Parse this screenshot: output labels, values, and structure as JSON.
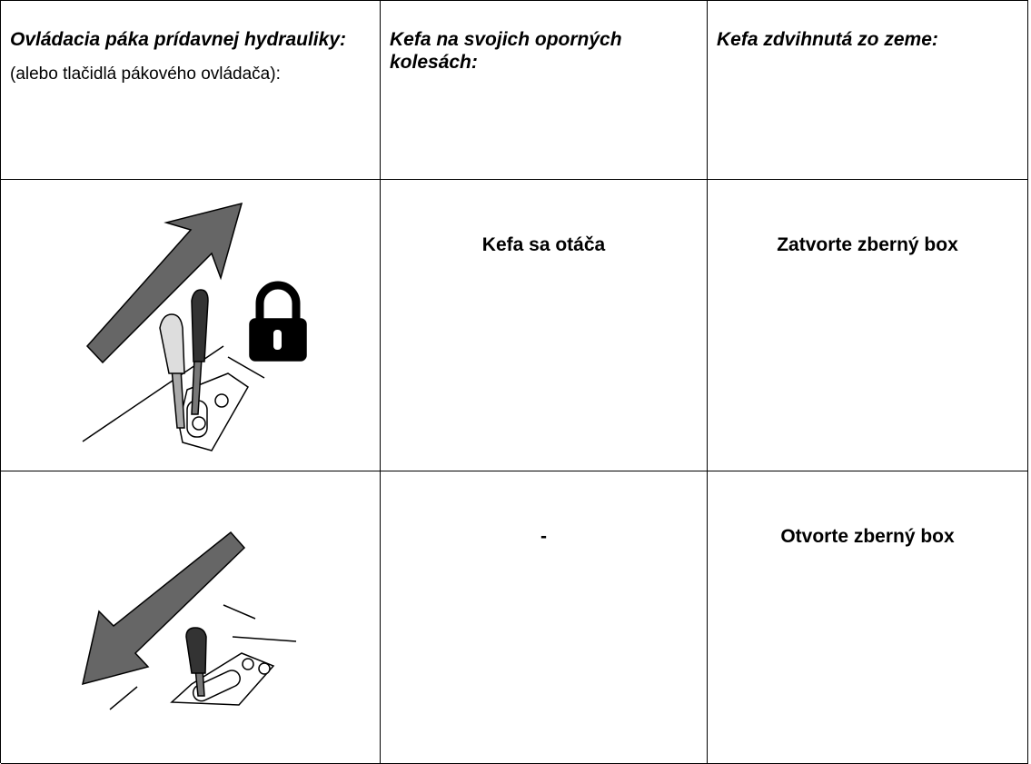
{
  "table": {
    "header": [
      {
        "title": "Ovládacia páka prídavnej hydrauliky:",
        "note": "(alebo tlačidlá pákového ovládača):"
      },
      "Kefa na svojich oporných kolesách:",
      "Kefa zdvihnutá zo zeme:"
    ],
    "rows": [
      [
        "Kefa sa otáča",
        "Zatvorte zberný box"
      ],
      [
        "-",
        "Otvorte zberný box"
      ]
    ]
  }
}
